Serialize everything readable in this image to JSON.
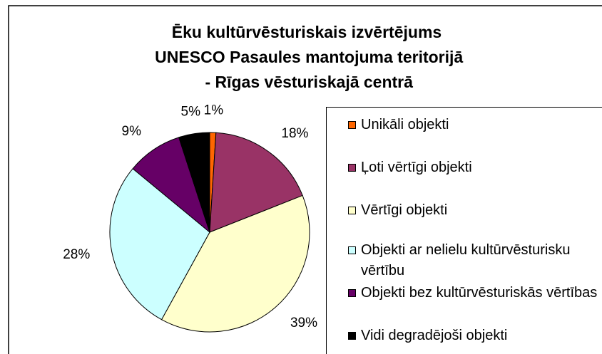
{
  "chart_data": {
    "type": "pie",
    "title": "Ēku kultūrvēsturiskais izvērtējums UNESCO Pasaules mantojuma teritorijā - Rīgas vēsturiskajā centrā",
    "categories": [
      "Unikāli objekti",
      "Ļoti vērtīgi objekti",
      "Vērtīgi objekti",
      "Objekti ar nelielu kultūrvēsturisku vērtību",
      "Objekti bez kultūrvēsturiskās vērtības",
      "Vidi degradējoši objekti"
    ],
    "values": [
      1,
      18,
      39,
      28,
      9,
      5
    ],
    "value_labels": [
      "1%",
      "18%",
      "39%",
      "28%",
      "9%",
      "5%"
    ],
    "colors": [
      "#FF6600",
      "#993366",
      "#FFFFCC",
      "#CCFFFF",
      "#660066",
      "#000000"
    ],
    "legend": "right"
  }
}
